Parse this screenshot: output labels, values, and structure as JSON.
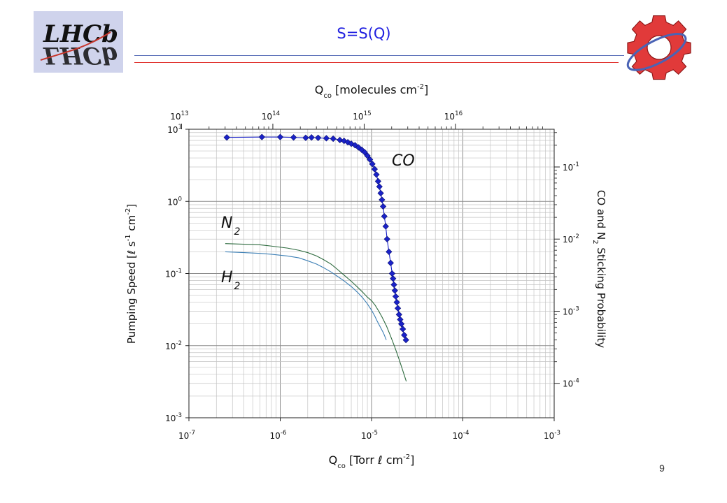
{
  "slide": {
    "title": "S=S(Q)",
    "page_number": "9"
  },
  "colors": {
    "title": "#1f1fe0",
    "co_series": "#1a22c8",
    "n2_series": "#2e6b3f",
    "h2_series": "#3c7fb5",
    "rule_blue": "#5a6fb8",
    "rule_red": "#e0302c",
    "logo_bg": "#cfd3ec",
    "logo_text": "#1e2e9e",
    "gear": "#e13a3a"
  },
  "logos": [
    {
      "name": "lhcb-logo",
      "text": "LHCb"
    },
    {
      "name": "gear-logo"
    }
  ],
  "chart_data": {
    "type": "line",
    "xscale": "log",
    "yscale": "log",
    "xlim": [
      1e-07,
      0.001
    ],
    "ylim": [
      0.001,
      10
    ],
    "grid": true,
    "xlabel": "Q_co [Torr ℓ cm^-2]",
    "ylabel": "Pumping Speed [ℓ s^-1 cm^-2]",
    "top_axis_label": "Q_co [molecules cm^-2]",
    "right_axis_label": "CO and N_2 Sticking Probability",
    "x_ticks": [
      {
        "value": 1e-07,
        "base": "10",
        "exp": "-7"
      },
      {
        "value": 1e-06,
        "base": "10",
        "exp": "-6"
      },
      {
        "value": 1e-05,
        "base": "10",
        "exp": "-5"
      },
      {
        "value": 0.0001,
        "base": "10",
        "exp": "-4"
      },
      {
        "value": 0.001,
        "base": "10",
        "exp": "-3"
      }
    ],
    "y_ticks": [
      {
        "value": 10,
        "base": "10",
        "exp": "1"
      },
      {
        "value": 1,
        "base": "10",
        "exp": "0"
      },
      {
        "value": 0.1,
        "base": "10",
        "exp": "-1"
      },
      {
        "value": 0.01,
        "base": "10",
        "exp": "-2"
      },
      {
        "value": 0.001,
        "base": "10",
        "exp": "-3"
      }
    ],
    "top_ticks": [
      {
        "value": 10000000000000.0,
        "base": "10",
        "exp": "13"
      },
      {
        "value": 100000000000000.0,
        "base": "10",
        "exp": "14"
      },
      {
        "value": 1000000000000000.0,
        "base": "10",
        "exp": "15"
      },
      {
        "value": 1e+16,
        "base": "10",
        "exp": "16"
      }
    ],
    "right_ticks": [
      {
        "value": 0.1,
        "base": "10",
        "exp": "-1"
      },
      {
        "value": 0.01,
        "base": "10",
        "exp": "-2"
      },
      {
        "value": 0.001,
        "base": "10",
        "exp": "-3"
      },
      {
        "value": 0.0001,
        "base": "10",
        "exp": "-4"
      }
    ],
    "series": [
      {
        "name": "CO",
        "marker": "diamond",
        "x": [
          2.6e-07,
          6.3e-07,
          1e-06,
          1.4e-06,
          1.9e-06,
          2.2e-06,
          2.6e-06,
          3.2e-06,
          3.8e-06,
          4.5e-06,
          5e-06,
          5.5e-06,
          6e-06,
          6.6e-06,
          7.2e-06,
          7.8e-06,
          8.4e-06,
          9e-06,
          9.6e-06,
          1.02e-05,
          1.08e-05,
          1.13e-05,
          1.18e-05,
          1.22e-05,
          1.26e-05,
          1.3e-05,
          1.34e-05,
          1.38e-05,
          1.43e-05,
          1.48e-05,
          1.55e-05,
          1.62e-05,
          1.68e-05,
          1.72e-05,
          1.76e-05,
          1.8e-05,
          1.84e-05,
          1.89e-05,
          1.94e-05,
          2e-05,
          2.06e-05,
          2.12e-05,
          2.2e-05,
          2.28e-05,
          2.38e-05
        ],
        "y": [
          7.7,
          7.8,
          7.8,
          7.7,
          7.6,
          7.7,
          7.6,
          7.5,
          7.4,
          7.1,
          6.9,
          6.6,
          6.3,
          6.0,
          5.6,
          5.2,
          4.8,
          4.3,
          3.8,
          3.3,
          2.8,
          2.35,
          1.9,
          1.6,
          1.3,
          1.05,
          0.85,
          0.62,
          0.45,
          0.3,
          0.2,
          0.14,
          0.1,
          0.085,
          0.07,
          0.058,
          0.048,
          0.04,
          0.033,
          0.027,
          0.023,
          0.02,
          0.017,
          0.014,
          0.012
        ]
      },
      {
        "name": "N2",
        "marker": "none",
        "x": [
          2.5e-07,
          4e-07,
          6e-07,
          8e-07,
          1.2e-06,
          1.6e-06,
          2e-06,
          2.5e-06,
          3e-06,
          3.6e-06,
          4.2e-06,
          5e-06,
          6e-06,
          7e-06,
          8e-06,
          9e-06,
          1e-05,
          1.1e-05,
          1.2e-05,
          1.3e-05,
          1.45e-05,
          1.6e-05,
          1.8e-05,
          2e-05,
          2.2e-05,
          2.4e-05
        ],
        "y": [
          0.26,
          0.255,
          0.25,
          0.24,
          0.225,
          0.21,
          0.195,
          0.175,
          0.155,
          0.135,
          0.115,
          0.095,
          0.078,
          0.065,
          0.055,
          0.047,
          0.042,
          0.036,
          0.03,
          0.025,
          0.019,
          0.014,
          0.0095,
          0.0065,
          0.0045,
          0.0032
        ]
      },
      {
        "name": "H2",
        "marker": "none",
        "x": [
          2.5e-07,
          4e-07,
          6e-07,
          8e-07,
          1.2e-06,
          1.6e-06,
          2e-06,
          2.5e-06,
          3e-06,
          3.6e-06,
          4.2e-06,
          5e-06,
          6e-06,
          7e-06,
          8e-06,
          9e-06,
          1e-05,
          1.08e-05,
          1.15e-05,
          1.25e-05,
          1.35e-05,
          1.45e-05
        ],
        "y": [
          0.2,
          0.195,
          0.19,
          0.185,
          0.175,
          0.165,
          0.15,
          0.135,
          0.12,
          0.105,
          0.092,
          0.079,
          0.066,
          0.055,
          0.046,
          0.038,
          0.031,
          0.026,
          0.022,
          0.018,
          0.015,
          0.012
        ]
      }
    ],
    "annotations": [
      {
        "text": "CO",
        "base": "CO",
        "sub": "",
        "series": "CO"
      },
      {
        "text": "N2",
        "base": "N",
        "sub": "2",
        "series": "N2"
      },
      {
        "text": "H2",
        "base": "H",
        "sub": "2",
        "series": "H2"
      }
    ],
    "axis_text": {
      "bottom": {
        "prefix": "Q",
        "sub": "co",
        "middle": " [Torr ",
        "ell": "ℓ",
        "unit": " cm",
        "sup": "-2",
        "close": "]"
      },
      "top": {
        "prefix": "Q",
        "sub": "co",
        "middle": " [molecules cm",
        "sup": "-2",
        "close": "]"
      },
      "left": {
        "prefix": "Pumping Speed [",
        "ell": "ℓ",
        "mid": " s",
        "sup1": "-1",
        "mid2": " cm",
        "sup2": "-2",
        "close": "]"
      },
      "right": {
        "prefix": "CO and N",
        "sub": "2",
        "rest": " Sticking Probability"
      }
    }
  }
}
